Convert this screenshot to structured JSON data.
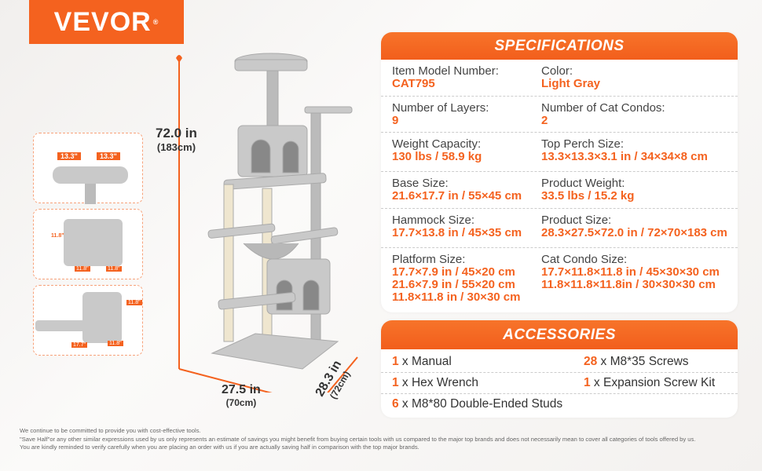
{
  "brand": {
    "name": "VEVOR",
    "mark": "®"
  },
  "dimensions": {
    "height_in": "72.0 in",
    "height_cm": "(183cm)",
    "width_in": "27.5 in",
    "width_cm": "(70cm)",
    "depth_in": "28.3 in",
    "depth_cm": "(72cm)"
  },
  "insets": {
    "top_left": "13.3\"",
    "top_right": "13.3\"",
    "condo_h": "11.8\"",
    "condo_w1": "11.8\"",
    "condo_w2": "11.8\"",
    "lower_h": "11.8\"",
    "lower_w1": "17.7\"",
    "lower_w2": "11.8\""
  },
  "specifications": {
    "title": "SPECIFICATIONS",
    "rows": [
      [
        {
          "label": "Item Model Number:",
          "values": [
            "CAT795"
          ]
        },
        {
          "label": "Color:",
          "values": [
            "Light Gray"
          ]
        }
      ],
      [
        {
          "label": "Number of Layers:",
          "values": [
            "9"
          ]
        },
        {
          "label": "Number of Cat Condos:",
          "values": [
            "2"
          ]
        }
      ],
      [
        {
          "label": "Weight Capacity:",
          "values": [
            "130 lbs / 58.9 kg"
          ]
        },
        {
          "label": "Top Perch Size:",
          "values": [
            "13.3×13.3×3.1 in / 34×34×8 cm"
          ]
        }
      ],
      [
        {
          "label": "Base Size:",
          "values": [
            "21.6×17.7 in / 55×45 cm"
          ]
        },
        {
          "label": "Product Weight:",
          "values": [
            "33.5 lbs / 15.2 kg"
          ]
        }
      ],
      [
        {
          "label": "Hammock Size:",
          "values": [
            "17.7×13.8 in / 45×35 cm"
          ]
        },
        {
          "label": "Product Size:",
          "values": [
            "28.3×27.5×72.0 in / 72×70×183 cm"
          ]
        }
      ],
      [
        {
          "label": "Platform Size:",
          "values": [
            "17.7×7.9 in / 45×20 cm",
            "21.6×7.9 in / 55×20 cm",
            "11.8×11.8 in / 30×30 cm"
          ]
        },
        {
          "label": "Cat Condo Size:",
          "values": [
            "17.7×11.8×11.8 in / 45×30×30 cm",
            "11.8×11.8×11.8in / 30×30×30 cm"
          ]
        }
      ]
    ]
  },
  "accessories": {
    "title": "ACCESSORIES",
    "rows": [
      [
        {
          "qty": "1",
          "item": " x Manual"
        },
        {
          "qty": "28",
          "item": " x M8*35 Screws"
        }
      ],
      [
        {
          "qty": "1",
          "item": " x Hex Wrench"
        },
        {
          "qty": "1",
          "item": " x Expansion Screw Kit"
        }
      ],
      [
        {
          "qty": "6",
          "item": " x M8*80 Double-Ended Studs"
        }
      ]
    ]
  },
  "disclaimer": [
    "We continue to be committed to provide you with cost-effective tools.",
    "\"Save Half\"or any other similar expressions used by us only represents an estimate of savings you might benefit from buying certain tools with us compared to the major top brands and does not necessarily mean to cover all categories of tools offered by us.",
    "You are kindly reminded to verify carefully when you are placing an order with us if you are actually saving half in comparison with the top major brands."
  ],
  "colors": {
    "accent": "#f4621f",
    "tree": "#c9c9c9",
    "sisal": "#efe6cf"
  }
}
